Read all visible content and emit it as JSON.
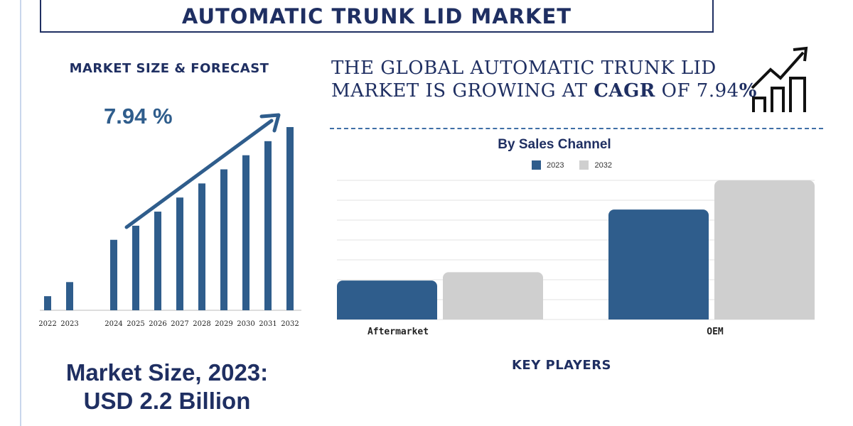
{
  "header": {
    "title": "AUTOMATIC TRUNK LID MARKET"
  },
  "left_panel": {
    "subtitle": "MARKET SIZE & FORECAST",
    "cagr": "7.94 %",
    "market_size_line1": "Market Size, 2023:",
    "market_size_line2": "USD 2.2 Billion"
  },
  "right_panel": {
    "growth_prefix": "THE GLOBAL AUTOMATIC TRUNK LID",
    "growth_line2_a": "MARKET IS GROWING AT ",
    "growth_line2_b": "CAGR",
    "growth_line2_c": " OF  7.94",
    "growth_line2_d": "%",
    "key_players": "KEY PLAYERS"
  },
  "icons": {
    "growth": "bar-chart-arrow-icon",
    "trend": "trend-arrow-icon"
  },
  "colors": {
    "primary": "#2f5d8c",
    "secondary": "#cfcfcf",
    "title": "#1f2f62"
  },
  "chart_data": [
    {
      "type": "bar",
      "title": "",
      "categories": [
        "2022",
        "2023",
        "2024",
        "2025",
        "2026",
        "2027",
        "2028",
        "2029",
        "2030",
        "2031",
        "2032"
      ],
      "values": [
        1.0,
        2.0,
        5.0,
        6.0,
        7.0,
        8.0,
        9.0,
        10.0,
        11.0,
        12.0,
        13.0
      ],
      "ylim": [
        0,
        13.2
      ],
      "note_values_relative": true
    },
    {
      "type": "bar",
      "title": "By Sales Channel",
      "categories": [
        "Aftermarket",
        "OEM"
      ],
      "series": [
        {
          "name": "2023",
          "values": [
            0.28,
            0.79
          ]
        },
        {
          "name": "2032",
          "values": [
            0.34,
            1.0
          ]
        }
      ],
      "ylim": [
        0,
        1.0
      ],
      "grid": true,
      "legend": "top"
    }
  ]
}
